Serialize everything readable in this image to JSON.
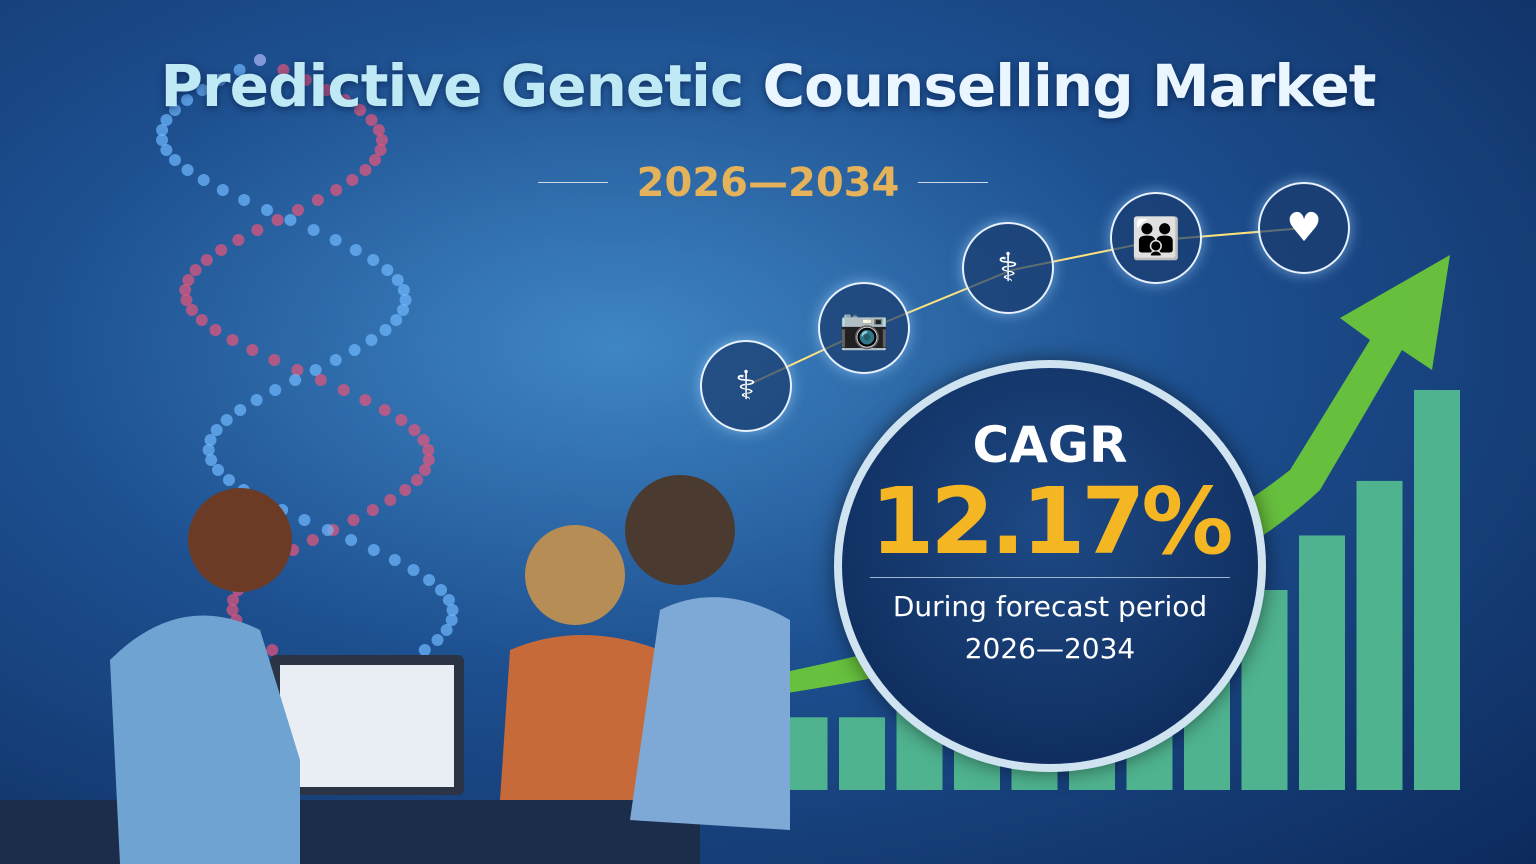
{
  "title": {
    "part1": "Predictive Genetic ",
    "part2": "Counselling Market"
  },
  "years": "2026—2034",
  "icons": [
    "dna-icon",
    "camera-icon",
    "doctor-icon",
    "family-icon",
    "heart-icon"
  ],
  "cagr": {
    "label": "CAGR",
    "value": "12.17%",
    "subtitle": "During forecast period",
    "period": "2026—2034"
  },
  "chart_data": {
    "type": "bar",
    "trend": "increasing",
    "values": [
      3,
      4,
      4,
      5,
      6,
      7,
      8,
      9,
      10,
      11,
      14,
      17,
      22
    ]
  },
  "colors": {
    "gold": "#e3b25a",
    "cagr_value": "#f5b624",
    "arrow": "#6cc63a",
    "bars": "#4fb38f"
  }
}
